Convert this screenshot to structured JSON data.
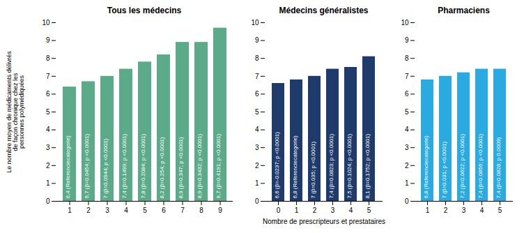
{
  "chart_data": [
    {
      "type": "bar",
      "title": "Tous les médecins",
      "categories": [
        1,
        2,
        3,
        4,
        5,
        6,
        7,
        8,
        9
      ],
      "values": [
        6.4,
        6.7,
        7.0,
        7.4,
        7.8,
        8.2,
        8.9,
        8.9,
        9.7
      ],
      "value_labels": [
        "6,4 (Referenciecategorie)",
        "6,7 (β=0.0454; p <0.0001)",
        "7 (β=0.0944; p <0.0001)",
        "7,4 (β=0.1499; p <0.0001)",
        "7,8 (β=0.2084; p <0.0001)",
        "8,2 (β=0.254; p <0.0001)",
        "8,9 (β=0.347; p <0.0001)",
        "8,9 (β=0.3432; p <0.0001)",
        "9,7 (β=0.4191; p <0.0001)"
      ],
      "color": "#5baa8a",
      "ylabel": "Le nombre moyen de médicaments délivrés\nde façon chronique chez les\npersonnes polymédiquées",
      "ylim": [
        0,
        10
      ],
      "yticks": [
        0,
        1,
        2,
        3,
        4,
        5,
        6,
        7,
        8,
        9,
        10
      ]
    },
    {
      "type": "bar",
      "title": "Médecins généralistes",
      "categories": [
        0,
        1,
        2,
        3,
        4,
        5
      ],
      "values": [
        6.6,
        6.8,
        7.0,
        7.4,
        7.5,
        8.1
      ],
      "value_labels": [
        "6,6 (β=-0.0237; p <0.0001)",
        "6,8 (Referenciecategorie)",
        "7 (β=0.035; p <0.0001)",
        "7,4 (β=0.0823; p <0.0001)",
        "7,5 (β=0.1024; p <0.0001)",
        "8,1 (β=0.1752; p <0.0001)"
      ],
      "color": "#1f3b6b",
      "xlabel": "Nombre de prescripteurs et prestataires",
      "ylim": [
        0,
        10
      ],
      "yticks": [
        0,
        1,
        2,
        3,
        4,
        5,
        6,
        7,
        8,
        9,
        10
      ]
    },
    {
      "type": "bar",
      "title": "Pharmaciens",
      "categories": [
        1,
        2,
        3,
        4,
        5
      ],
      "values": [
        6.8,
        7.0,
        7.2,
        7.4,
        7.4
      ],
      "value_labels": [
        "6,8 (Referenciecategorie)",
        "7 (β=0.031; p <0.0001)",
        "7,2 (β=0.0622; p <0.0001)",
        "7,4 (β=0.0856; p <0.0001)",
        "7,4 (β=0.0828; p 0.0009)"
      ],
      "color": "#29aae1",
      "ylim": [
        0,
        10
      ],
      "yticks": [
        0,
        1,
        2,
        3,
        4,
        5,
        6,
        7,
        8,
        9,
        10
      ]
    }
  ]
}
